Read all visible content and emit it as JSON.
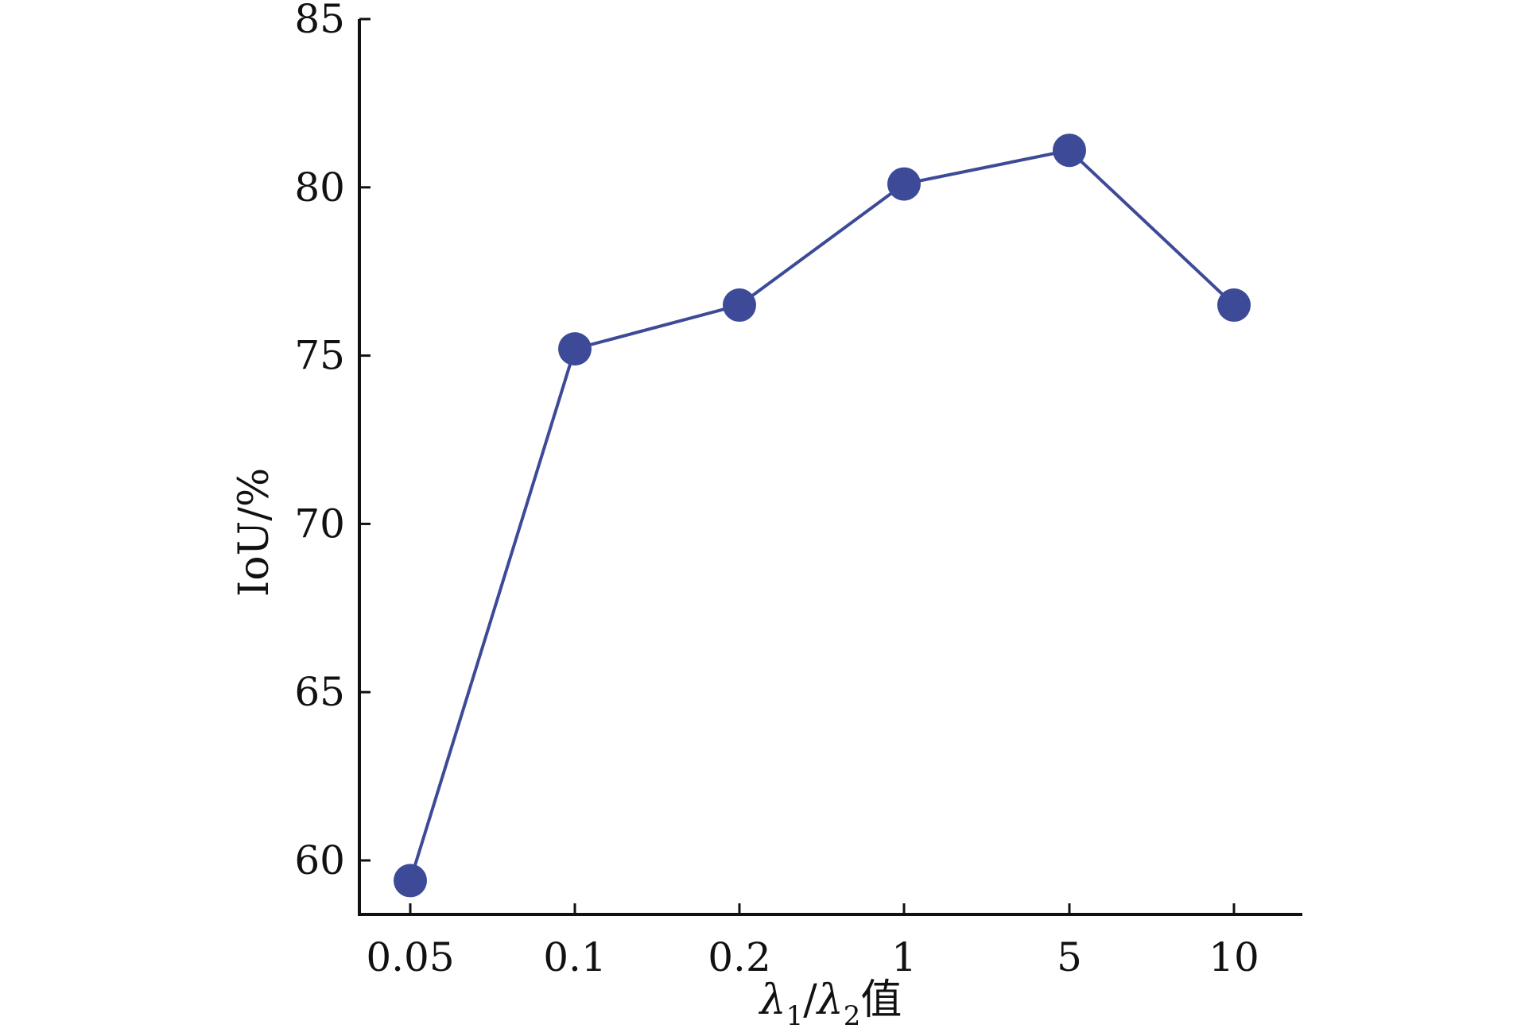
{
  "chart_data": {
    "type": "line",
    "title": "",
    "xlabel": {
      "symbol": "λ",
      "sub1": "1",
      "slash": "/",
      "sub2": "2",
      "suffix": "值"
    },
    "ylabel": "IoU/%",
    "categories": [
      "0.05",
      "0.1",
      "0.2",
      "1",
      "5",
      "10"
    ],
    "series": [
      {
        "values": [
          59.4,
          75.2,
          76.5,
          80.1,
          81.1,
          76.5
        ]
      }
    ],
    "ylim": [
      58.3,
      85
    ],
    "yticks": [
      60,
      65,
      70,
      75,
      80,
      85
    ],
    "ytick_labels": [
      "60",
      "65",
      "70",
      "75",
      "80",
      "85"
    ],
    "grid": false,
    "legend": "none",
    "colors": {
      "series": "#3D4A98",
      "axis": "#111111"
    }
  }
}
